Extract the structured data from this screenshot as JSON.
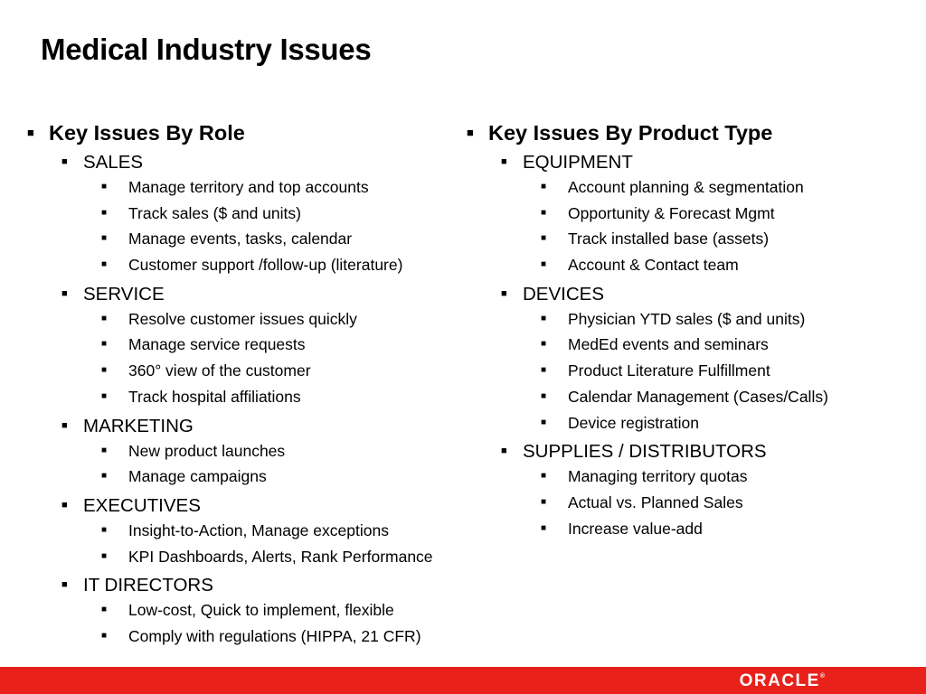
{
  "title": "Medical Industry Issues",
  "left": {
    "heading": "Key Issues By Role",
    "groups": [
      {
        "name": "SALES",
        "items": [
          "Manage territory and top accounts",
          "Track sales ($ and units)",
          "Manage events, tasks, calendar",
          "Customer support /follow-up (literature)"
        ]
      },
      {
        "name": "SERVICE",
        "items": [
          "Resolve customer issues quickly",
          "Manage service requests",
          "360° view of the customer",
          "Track hospital affiliations"
        ]
      },
      {
        "name": "MARKETING",
        "items": [
          "New product launches",
          "Manage campaigns"
        ]
      },
      {
        "name": "EXECUTIVES",
        "items": [
          "Insight-to-Action, Manage exceptions",
          "KPI Dashboards, Alerts, Rank Performance"
        ]
      },
      {
        "name": "IT DIRECTORS",
        "items": [
          "Low-cost, Quick to implement, flexible",
          "Comply with regulations (HIPPA, 21 CFR)"
        ]
      }
    ]
  },
  "right": {
    "heading": "Key Issues By Product Type",
    "groups": [
      {
        "name": "EQUIPMENT",
        "items": [
          "Account planning & segmentation",
          "Opportunity & Forecast Mgmt",
          "Track installed base (assets)",
          "Account & Contact team"
        ]
      },
      {
        "name": "DEVICES",
        "items": [
          "Physician YTD sales ($ and units)",
          "MedEd events and seminars",
          "Product Literature Fulfillment",
          "Calendar Management (Cases/Calls)",
          "Device registration"
        ]
      },
      {
        "name": "SUPPLIES / DISTRIBUTORS",
        "items": [
          "Managing territory quotas",
          "Actual vs. Planned Sales",
          "Increase value-add"
        ]
      }
    ]
  },
  "footer": {
    "logo": "ORACLE",
    "logo_mark": "®",
    "color": "#e8221b"
  },
  "bullet_icon": "square-bullet"
}
